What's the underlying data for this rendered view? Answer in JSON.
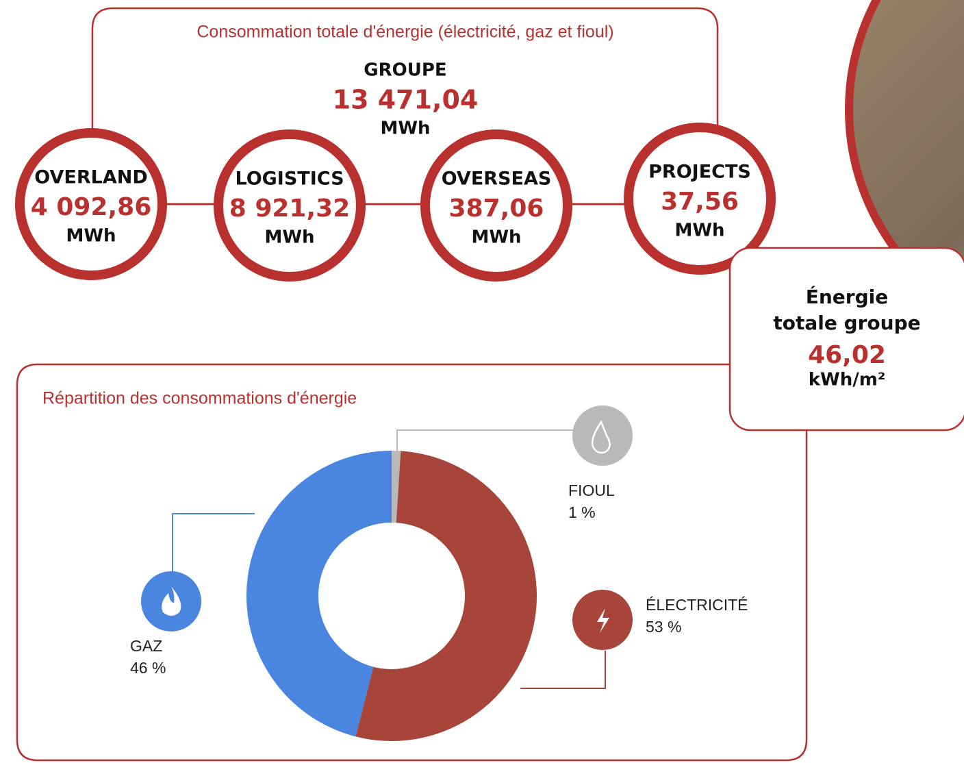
{
  "header": {
    "title": "Consommation totale d'énergie (électricité, gaz et fioul)"
  },
  "group": {
    "label": "GROUPE",
    "value": "13 471,04",
    "unit": "MWh"
  },
  "entities": [
    {
      "label": "OVERLAND",
      "value": "4 092,86",
      "unit": "MWh"
    },
    {
      "label": "LOGISTICS",
      "value": "8 921,32",
      "unit": "MWh"
    },
    {
      "label": "OVERSEAS",
      "value": "387,06",
      "unit": "MWh"
    },
    {
      "label": "PROJECTS",
      "value": "37,56",
      "unit": "MWh"
    }
  ],
  "intensity": {
    "title_lines": [
      "Énergie",
      "totale groupe"
    ],
    "value": "46,02",
    "unit": "kWh/m²"
  },
  "chart_data": {
    "type": "pie",
    "title": "Répartition des consommations d'énergie",
    "categories": [
      "FIOUL",
      "ÉLECTRICITÉ",
      "GAZ"
    ],
    "values": [
      1,
      53,
      46
    ],
    "value_labels": [
      "1 %",
      "53 %",
      "46 %"
    ],
    "colors": [
      "#b9b9b9",
      "#a8453b",
      "#4a86e0"
    ]
  }
}
